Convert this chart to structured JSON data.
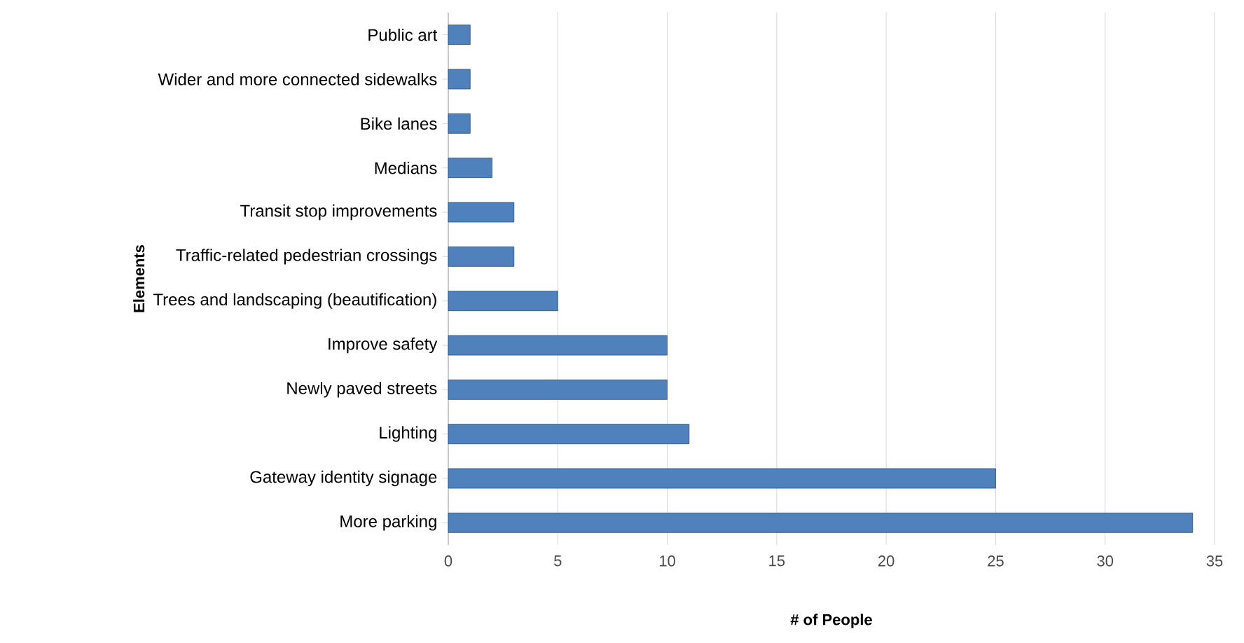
{
  "chart_data": {
    "type": "bar",
    "orientation": "horizontal",
    "xlabel": "# of People",
    "ylabel": "Elements",
    "categories": [
      "Public art",
      "Wider and more connected sidewalks",
      "Bike lanes",
      "Medians",
      "Transit stop improvements",
      "Traffic-related pedestrian crossings",
      "Trees and landscaping (beautification)",
      "Improve safety",
      "Newly paved streets",
      "Lighting",
      "Gateway identity signage",
      "More parking"
    ],
    "values": [
      1,
      1,
      1,
      2,
      3,
      3,
      5,
      10,
      10,
      11,
      25,
      34
    ],
    "color": "#4f81bd",
    "xlim": [
      0,
      35
    ],
    "xticks": [
      0,
      5,
      10,
      15,
      20,
      25,
      30,
      35
    ],
    "grid": "x"
  }
}
